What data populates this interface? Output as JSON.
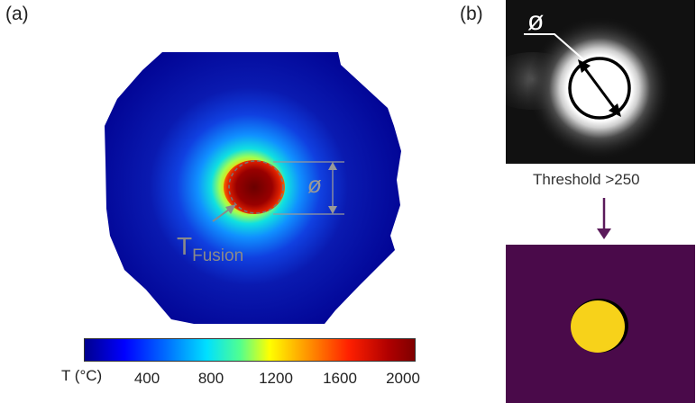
{
  "panel_a": {
    "label": "(a)",
    "diameter_symbol": "ø",
    "fusion_label_main": "T",
    "fusion_label_sub": "Fusion",
    "colorbar": {
      "title": "T (°C)",
      "ticks": [
        "400",
        "800",
        "1200",
        "1600",
        "2000"
      ],
      "min": 0,
      "max": 2050,
      "colormap": "jet"
    }
  },
  "panel_b": {
    "label": "(b)",
    "diameter_symbol": "ø",
    "threshold_text": "Threshold >250",
    "colors": {
      "background_dark": "#4a0a4a",
      "spot": "#f7d21a",
      "arrow": "#5a1a5a"
    }
  }
}
